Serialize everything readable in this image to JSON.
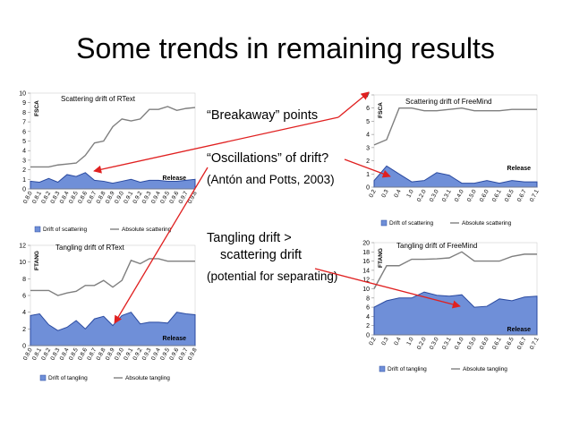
{
  "slide_title": "Some trends in remaining results",
  "notes": {
    "breakaway": "“Breakaway” points",
    "oscillations": "“Oscillations” of drift?",
    "citation": "(Antón and Potts, 2003)",
    "tangling_line1": "Tangling drift >",
    "tangling_line2": "scattering drift",
    "potential": "(potential for separating)"
  },
  "colors": {
    "drift_fill": "#6f8fd8",
    "drift_stroke": "#2a4aa0",
    "absolute_line": "#7f7f7f",
    "arrow": "#e02020"
  },
  "chart_data": [
    {
      "type": "area",
      "title": "Scattering drift of RText",
      "ylabel": "FSCA",
      "annotation": "Release",
      "ylim": [
        0,
        10
      ],
      "yticks": [
        "0",
        "1",
        "2",
        "3",
        "4",
        "5",
        "6",
        "7",
        "8",
        "9",
        "10"
      ],
      "categories": [
        "0.8.0",
        "0.8.1",
        "0.8.2",
        "0.8.3",
        "0.8.4",
        "0.8.5",
        "0.8.6",
        "0.8.7",
        "0.8.8",
        "0.8.9",
        "0.9.0",
        "0.9.1",
        "0.9.2",
        "0.9.3",
        "0.9.4",
        "0.9.5",
        "0.9.6",
        "0.9.7",
        "0.9.8"
      ],
      "series": [
        {
          "name": "Drift of scattering",
          "values": [
            0.8,
            0.7,
            1.1,
            0.7,
            1.5,
            1.3,
            1.7,
            0.9,
            0.8,
            0.6,
            0.8,
            1.0,
            0.7,
            0.9,
            0.9,
            0.8,
            0.8,
            0.9,
            1.0
          ]
        },
        {
          "name": "Absolute scattering",
          "values": [
            2.3,
            2.3,
            2.3,
            2.5,
            2.6,
            2.7,
            3.5,
            4.8,
            5.0,
            6.5,
            7.3,
            7.1,
            7.3,
            8.3,
            8.3,
            8.6,
            8.2,
            8.4,
            8.5
          ]
        }
      ]
    },
    {
      "type": "area",
      "title": "Scattering drift of FreeMind",
      "ylabel": "FSCA",
      "annotation": "Release",
      "ylim": [
        0,
        7
      ],
      "yticks": [
        "0",
        "1",
        "2",
        "3",
        "4",
        "5",
        "6",
        "7"
      ],
      "categories": [
        "0.2",
        "0.3",
        "0.4",
        "1.0",
        "0.2.0",
        "0.3.0",
        "0.3.1",
        "0.4.0",
        "0.5.0",
        "0.6.0",
        "0.6.1",
        "0.6.5",
        "0.6.7",
        "0.7.1"
      ],
      "series": [
        {
          "name": "Drift of scattering",
          "values": [
            0.5,
            1.6,
            1.0,
            0.4,
            0.5,
            1.1,
            0.9,
            0.3,
            0.3,
            0.5,
            0.3,
            0.5,
            0.4,
            0.4
          ]
        },
        {
          "name": "Absolute scattering",
          "values": [
            3.2,
            3.6,
            6.0,
            6.0,
            5.8,
            5.8,
            5.9,
            6.0,
            5.8,
            5.8,
            5.8,
            5.9,
            5.9,
            5.9
          ]
        }
      ]
    },
    {
      "type": "area",
      "title": "Tangling drift of RText",
      "ylabel": "FTANG",
      "annotation": "Release",
      "ylim": [
        0,
        12
      ],
      "yticks": [
        "0",
        "2",
        "4",
        "6",
        "8",
        "10",
        "12"
      ],
      "categories": [
        "0.8.0",
        "0.8.1",
        "0.8.2",
        "0.8.3",
        "0.8.4",
        "0.8.5",
        "0.8.6",
        "0.8.7",
        "0.8.8",
        "0.8.9",
        "0.9.0",
        "0.9.1",
        "0.9.2",
        "0.9.3",
        "0.9.4",
        "0.9.5",
        "0.9.6",
        "0.9.7",
        "0.9.8"
      ],
      "series": [
        {
          "name": "Drift of tangling",
          "values": [
            3.6,
            3.8,
            2.5,
            1.8,
            2.2,
            3.0,
            2.0,
            3.2,
            3.5,
            2.4,
            3.6,
            4.0,
            2.6,
            2.8,
            2.8,
            2.7,
            4.0,
            3.8,
            3.7
          ]
        },
        {
          "name": "Absolute tangling",
          "values": [
            6.6,
            6.6,
            6.6,
            6.0,
            6.3,
            6.5,
            7.2,
            7.2,
            7.8,
            7.0,
            7.8,
            10.2,
            9.8,
            10.4,
            10.4,
            10.1,
            10.1,
            10.1,
            10.1
          ]
        }
      ]
    },
    {
      "type": "area",
      "title": "Tangling drift of FreeMind",
      "ylabel": "FTANG",
      "annotation": "Release",
      "ylim": [
        0,
        20
      ],
      "yticks": [
        "0",
        "2",
        "4",
        "6",
        "8",
        "10",
        "12",
        "14",
        "16",
        "18",
        "20"
      ],
      "categories": [
        "0.2",
        "0.3",
        "0.4",
        "1.0",
        "0.2.0",
        "0.3.0",
        "0.3.1",
        "0.4.0",
        "0.5.0",
        "0.6.0",
        "0.6.1",
        "0.6.5",
        "0.6.7",
        "0.7.1"
      ],
      "series": [
        {
          "name": "Drift of tangling",
          "values": [
            6.0,
            7.4,
            8.0,
            8.0,
            9.3,
            8.6,
            8.4,
            8.7,
            6.0,
            6.2,
            7.8,
            7.4,
            8.2,
            8.4
          ]
        },
        {
          "name": "Absolute tangling",
          "values": [
            10.0,
            15.0,
            15.0,
            16.4,
            16.4,
            16.5,
            16.7,
            18.0,
            16.0,
            16.0,
            16.0,
            17.0,
            17.5,
            17.5
          ]
        }
      ]
    }
  ]
}
